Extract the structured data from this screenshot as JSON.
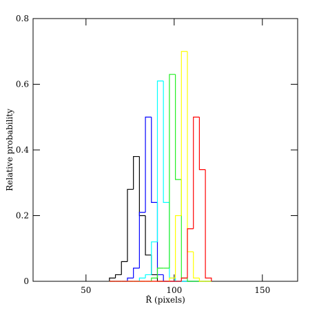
{
  "chart_data": {
    "type": "histogram",
    "xlabel": "R̂ (pixels)",
    "ylabel": "Relative probability",
    "xlim": [
      20,
      170
    ],
    "xticks": [
      50,
      100,
      150
    ],
    "ylim": [
      0,
      0.8
    ],
    "yticks": [
      0,
      0.2,
      0.4,
      0.6,
      0.8
    ],
    "bins": [
      63.3,
      66.7,
      70.1,
      73.5,
      76.9,
      80.3,
      83.7,
      87.1,
      90.5,
      93.9,
      97.3,
      100.7,
      104.1,
      107.5,
      110.9,
      114.3,
      117.7,
      121.1
    ],
    "series": [
      {
        "color": "#000000",
        "values": [
          0.01,
          0.02,
          0.06,
          0.28,
          0.38,
          0.2,
          0.08,
          0.02,
          0,
          0,
          0,
          0,
          0,
          0,
          0,
          0,
          0
        ]
      },
      {
        "color": "#0000ff",
        "values": [
          0,
          0,
          0,
          0.01,
          0.04,
          0.21,
          0.5,
          0.24,
          0.02,
          0,
          0,
          0,
          0,
          0,
          0,
          0,
          0
        ]
      },
      {
        "color": "#00ffff",
        "values": [
          0,
          0,
          0,
          0,
          0,
          0.01,
          0.02,
          0.12,
          0.61,
          0.24,
          0.01,
          0,
          0,
          0,
          0,
          0,
          0
        ]
      },
      {
        "color": "#22ee22",
        "values": [
          0,
          0,
          0,
          0,
          0,
          0,
          0,
          0.01,
          0.04,
          0.04,
          0.63,
          0.31,
          0.01,
          0,
          0,
          0,
          0
        ]
      },
      {
        "color": "#ffff00",
        "values": [
          0,
          0,
          0,
          0,
          0,
          0,
          0,
          0,
          0,
          0,
          0.01,
          0.2,
          0.7,
          0.09,
          0.01,
          0,
          0
        ]
      },
      {
        "color": "#ff0000",
        "values": [
          0,
          0,
          0,
          0,
          0,
          0,
          0,
          0,
          0,
          0,
          0,
          0,
          0.01,
          0.16,
          0.5,
          0.34,
          0.01
        ]
      }
    ]
  }
}
